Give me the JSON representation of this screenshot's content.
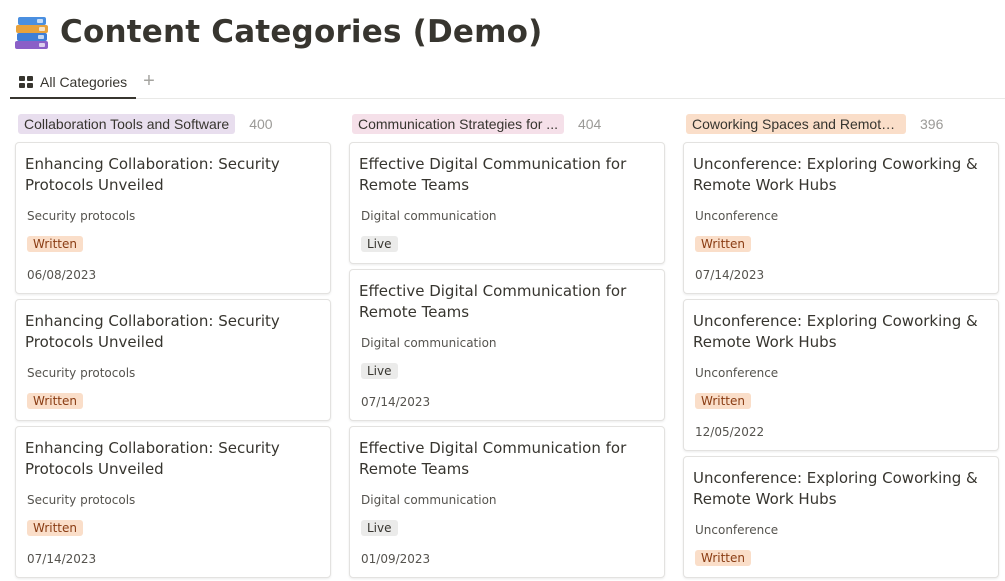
{
  "page": {
    "title": "Content Categories (Demo)",
    "icon": "books-icon"
  },
  "views": {
    "active_tab": "All Categories",
    "add_symbol": "+"
  },
  "colors": {
    "written_bg": "#fadec9",
    "written_fg": "#8a3c13",
    "live_bg": "#ebebea",
    "live_fg": "#37352f"
  },
  "columns": [
    {
      "label": "Collaboration Tools and Software",
      "count": "400",
      "tag_color": "#e8deee",
      "cards": [
        {
          "title": "Enhancing Collaboration: Security Protocols Unveiled",
          "keyword": "Security protocols",
          "status": "Written",
          "date": "06/08/2023"
        },
        {
          "title": "Enhancing Collaboration: Security Protocols Unveiled",
          "keyword": "Security protocols",
          "status": "Written",
          "date": ""
        },
        {
          "title": "Enhancing Collaboration: Security Protocols Unveiled",
          "keyword": "Security protocols",
          "status": "Written",
          "date": "07/14/2023"
        }
      ]
    },
    {
      "label": "Communication Strategies for ...",
      "count": "404",
      "tag_color": "#f5e0e9",
      "cards": [
        {
          "title": "Effective Digital Communication for Remote Teams",
          "keyword": "Digital communication",
          "status": "Live",
          "date": ""
        },
        {
          "title": "Effective Digital Communication for Remote Teams",
          "keyword": "Digital communication",
          "status": "Live",
          "date": "07/14/2023"
        },
        {
          "title": "Effective Digital Communication for Remote Teams",
          "keyword": "Digital communication",
          "status": "Live",
          "date": "01/09/2023"
        }
      ]
    },
    {
      "label": "Coworking Spaces and Remote ...",
      "count": "396",
      "tag_color": "#fadec9",
      "cards": [
        {
          "title": "Unconference: Exploring Coworking & Remote Work Hubs",
          "keyword": "Unconference",
          "status": "Written",
          "date": "07/14/2023"
        },
        {
          "title": "Unconference: Exploring Coworking & Remote Work Hubs",
          "keyword": "Unconference",
          "status": "Written",
          "date": "12/05/2022"
        },
        {
          "title": "Unconference: Exploring Coworking & Remote Work Hubs",
          "keyword": "Unconference",
          "status": "Written",
          "date": ""
        }
      ]
    }
  ]
}
